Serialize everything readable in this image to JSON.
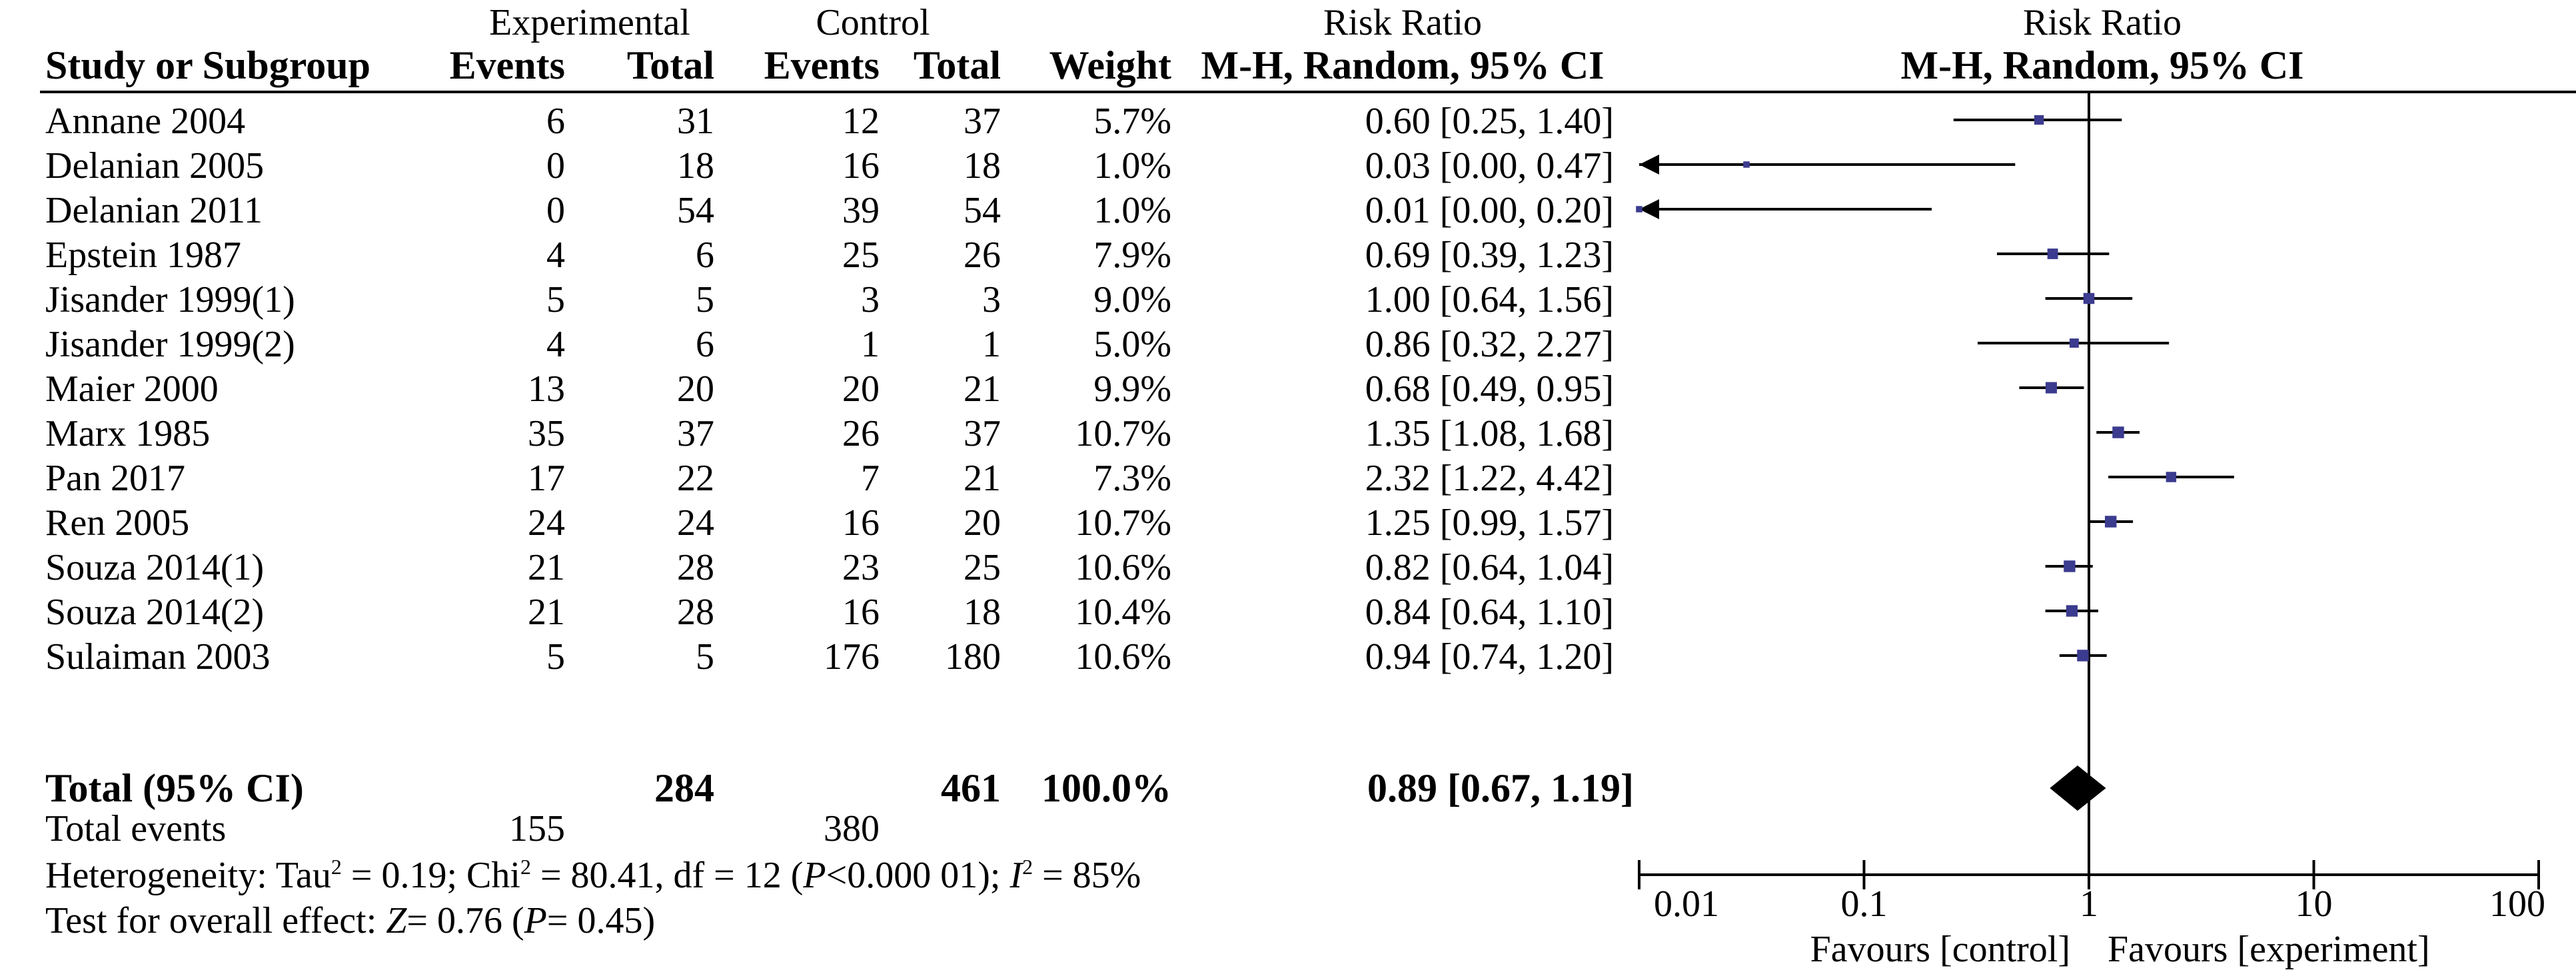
{
  "headers": {
    "study": "Study or Subgroup",
    "experimental": "Experimental",
    "control": "Control",
    "events": "Events",
    "total": "Total",
    "weight": "Weight",
    "rr_title": "Risk Ratio",
    "rr_sub": "M-H, Random, 95% CI",
    "plot_title": "Risk Ratio",
    "plot_sub": "M-H, Random, 95% CI"
  },
  "chart_data": {
    "type": "forest",
    "log_scale": true,
    "xlim": [
      0.01,
      100
    ],
    "null_line": 1,
    "ticks": [
      "0.01",
      "0.1",
      "1",
      "10",
      "100"
    ],
    "tick_values": [
      0.01,
      0.1,
      1,
      10,
      100
    ],
    "favours_left": "Favours [control]",
    "favours_right": "Favours [experiment]",
    "marker_color": "#3b3b8f",
    "studies": [
      {
        "name": "Annane 2004",
        "exp_events": "6",
        "exp_total": "31",
        "ctl_events": "12",
        "ctl_total": "37",
        "weight": "5.7%",
        "ci_text": "0.60 [0.25, 1.40]",
        "rr": 0.6,
        "lo": 0.25,
        "hi": 1.4,
        "arrow_left": false
      },
      {
        "name": "Delanian 2005",
        "exp_events": "0",
        "exp_total": "18",
        "ctl_events": "16",
        "ctl_total": "18",
        "weight": "1.0%",
        "ci_text": "0.03 [0.00, 0.47]",
        "rr": 0.03,
        "lo": 0.0,
        "hi": 0.47,
        "arrow_left": true
      },
      {
        "name": "Delanian 2011",
        "exp_events": "0",
        "exp_total": "54",
        "ctl_events": "39",
        "ctl_total": "54",
        "weight": "1.0%",
        "ci_text": "0.01 [0.00, 0.20]",
        "rr": 0.01,
        "lo": 0.0,
        "hi": 0.2,
        "arrow_left": true
      },
      {
        "name": "Epstein 1987",
        "exp_events": "4",
        "exp_total": "6",
        "ctl_events": "25",
        "ctl_total": "26",
        "weight": "7.9%",
        "ci_text": "0.69 [0.39, 1.23]",
        "rr": 0.69,
        "lo": 0.39,
        "hi": 1.23,
        "arrow_left": false
      },
      {
        "name": "Jisander 1999(1)",
        "exp_events": "5",
        "exp_total": "5",
        "ctl_events": "3",
        "ctl_total": "3",
        "weight": "9.0%",
        "ci_text": "1.00 [0.64, 1.56]",
        "rr": 1.0,
        "lo": 0.64,
        "hi": 1.56,
        "arrow_left": false
      },
      {
        "name": "Jisander 1999(2)",
        "exp_events": "4",
        "exp_total": "6",
        "ctl_events": "1",
        "ctl_total": "1",
        "weight": "5.0%",
        "ci_text": "0.86 [0.32, 2.27]",
        "rr": 0.86,
        "lo": 0.32,
        "hi": 2.27,
        "arrow_left": false
      },
      {
        "name": "Maier 2000",
        "exp_events": "13",
        "exp_total": "20",
        "ctl_events": "20",
        "ctl_total": "21",
        "weight": "9.9%",
        "ci_text": "0.68 [0.49, 0.95]",
        "rr": 0.68,
        "lo": 0.49,
        "hi": 0.95,
        "arrow_left": false
      },
      {
        "name": "Marx 1985",
        "exp_events": "35",
        "exp_total": "37",
        "ctl_events": "26",
        "ctl_total": "37",
        "weight": "10.7%",
        "ci_text": "1.35 [1.08, 1.68]",
        "rr": 1.35,
        "lo": 1.08,
        "hi": 1.68,
        "arrow_left": false
      },
      {
        "name": "Pan 2017",
        "exp_events": "17",
        "exp_total": "22",
        "ctl_events": "7",
        "ctl_total": "21",
        "weight": "7.3%",
        "ci_text": "2.32 [1.22, 4.42]",
        "rr": 2.32,
        "lo": 1.22,
        "hi": 4.42,
        "arrow_left": false
      },
      {
        "name": "Ren 2005",
        "exp_events": "24",
        "exp_total": "24",
        "ctl_events": "16",
        "ctl_total": "20",
        "weight": "10.7%",
        "ci_text": "1.25 [0.99, 1.57]",
        "rr": 1.25,
        "lo": 0.99,
        "hi": 1.57,
        "arrow_left": false
      },
      {
        "name": "Souza 2014(1)",
        "exp_events": "21",
        "exp_total": "28",
        "ctl_events": "23",
        "ctl_total": "25",
        "weight": "10.6%",
        "ci_text": "0.82 [0.64, 1.04]",
        "rr": 0.82,
        "lo": 0.64,
        "hi": 1.04,
        "arrow_left": false
      },
      {
        "name": "Souza 2014(2)",
        "exp_events": "21",
        "exp_total": "28",
        "ctl_events": "16",
        "ctl_total": "18",
        "weight": "10.4%",
        "ci_text": "0.84 [0.64, 1.10]",
        "rr": 0.84,
        "lo": 0.64,
        "hi": 1.1,
        "arrow_left": false
      },
      {
        "name": "Sulaiman 2003",
        "exp_events": "5",
        "exp_total": "5",
        "ctl_events": "176",
        "ctl_total": "180",
        "weight": "10.6%",
        "ci_text": "0.94 [0.74, 1.20]",
        "rr": 0.94,
        "lo": 0.74,
        "hi": 1.2,
        "arrow_left": false
      }
    ],
    "total": {
      "label": "Total (95% CI)",
      "exp_total": "284",
      "ctl_total": "461",
      "weight": "100.0%",
      "ci_text": "0.89 [0.67, 1.19]",
      "rr": 0.89,
      "lo": 0.67,
      "hi": 1.19
    }
  },
  "footer": {
    "total_events_label": "Total events",
    "exp_events": "155",
    "ctl_events": "380",
    "het_a": "Heterogeneity: Tau",
    "het_b": " = 0.19; Chi",
    "het_c": " = 80.41, df = 12 (",
    "het_d": "<0.000 01); ",
    "het_e": " = 85%",
    "test_a": "Test for overall effect: ",
    "test_b": "= 0.76 (",
    "test_c": "= 0.45)",
    "sq": "2",
    "P": "P",
    "I": "I",
    "Z": "Z"
  }
}
